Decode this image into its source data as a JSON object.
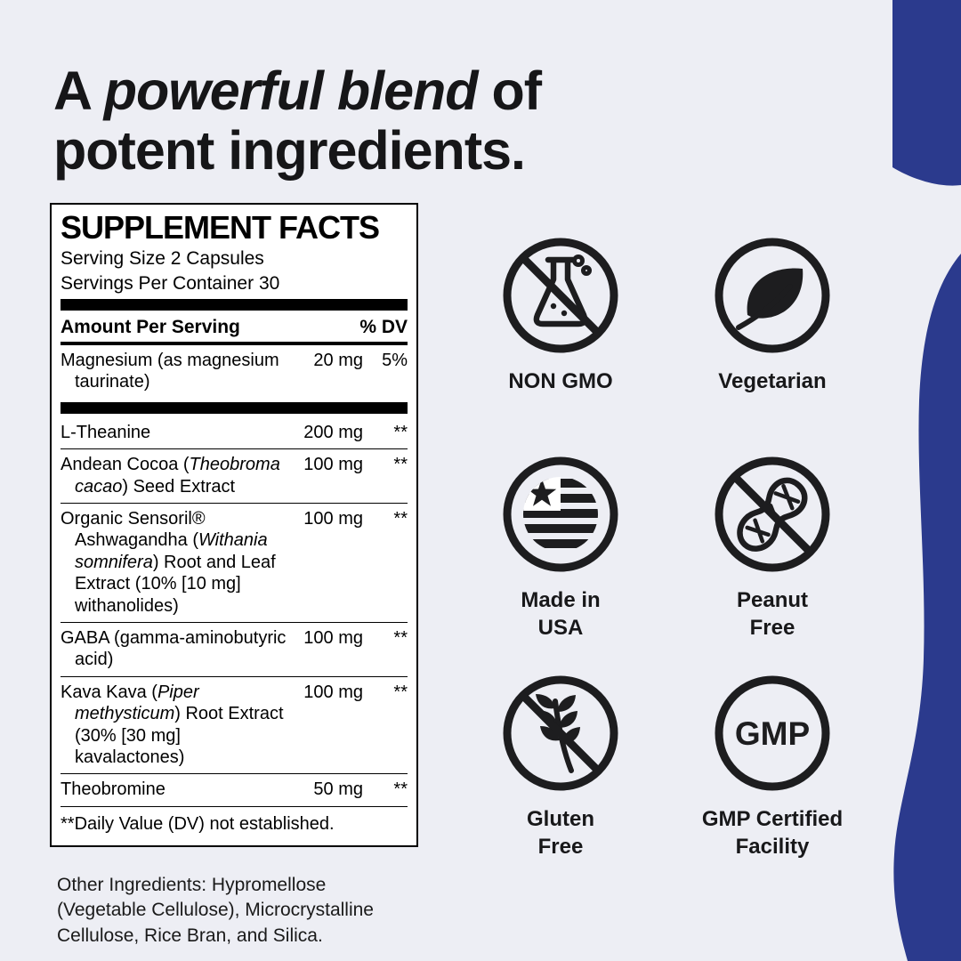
{
  "colors": {
    "background": "#edeef4",
    "accent_blue": "#2b3a8d",
    "icon_ink": "#1d1d1f",
    "panel_border": "#000000"
  },
  "heading": {
    "part1": "A ",
    "part2_italic": "powerful blend",
    "part3": " of",
    "line2": "potent ingredients."
  },
  "facts": {
    "title": "SUPPLEMENT FACTS",
    "serving_size": "Serving Size 2 Capsules",
    "servings_per_container": "Servings Per Container 30",
    "header": {
      "amount_label": "Amount Per Serving",
      "dv_label": "% DV"
    },
    "rows": [
      {
        "name": [
          {
            "t": "Magnesium (as magnesium taurinate)",
            "i": false
          }
        ],
        "amount": "20 mg",
        "dv": "5%",
        "bar_after": true
      },
      {
        "name": [
          {
            "t": "L-Theanine",
            "i": false
          }
        ],
        "amount": "200 mg",
        "dv": "**"
      },
      {
        "name": [
          {
            "t": "Andean Cocoa (",
            "i": false
          },
          {
            "t": "Theobroma cacao",
            "i": true
          },
          {
            "t": ") Seed Extract",
            "i": false
          }
        ],
        "amount": "100 mg",
        "dv": "**"
      },
      {
        "name": [
          {
            "t": "Organic Sensoril® Ashwagandha (",
            "i": false
          },
          {
            "t": "Withania somnifera",
            "i": true
          },
          {
            "t": ") Root and Leaf Extract (10% [10 mg] withanolides)",
            "i": false
          }
        ],
        "amount": "100 mg",
        "dv": "**"
      },
      {
        "name": [
          {
            "t": "GABA (gamma-aminobutyric acid)",
            "i": false
          }
        ],
        "amount": "100 mg",
        "dv": "**"
      },
      {
        "name": [
          {
            "t": "Kava Kava (",
            "i": false
          },
          {
            "t": "Piper methysticum",
            "i": true
          },
          {
            "t": ") Root Extract (30% [30 mg] kavalactones)",
            "i": false
          }
        ],
        "amount": "100 mg",
        "dv": "**"
      },
      {
        "name": [
          {
            "t": "Theobromine",
            "i": false
          }
        ],
        "amount": "50 mg",
        "dv": "**"
      }
    ],
    "footnote": "**Daily Value (DV) not established."
  },
  "other_ingredients": "Other Ingredients: Hypromellose (Vegetable Cellulose), Microcrystalline Cellulose, Rice Bran, and Silica.",
  "badges": [
    {
      "icon": "no-gmo-flask-icon",
      "label": "NON GMO"
    },
    {
      "icon": "vegetarian-leaf-icon",
      "label": "Vegetarian"
    },
    {
      "icon": "made-in-usa-flag-icon",
      "label": "Made in\nUSA"
    },
    {
      "icon": "peanut-free-icon",
      "label": "Peanut\nFree"
    },
    {
      "icon": "gluten-free-icon",
      "label": "Gluten\nFree"
    },
    {
      "icon": "gmp-certified-icon",
      "label": "GMP Certified\nFacility",
      "badge_text": "GMP"
    }
  ]
}
